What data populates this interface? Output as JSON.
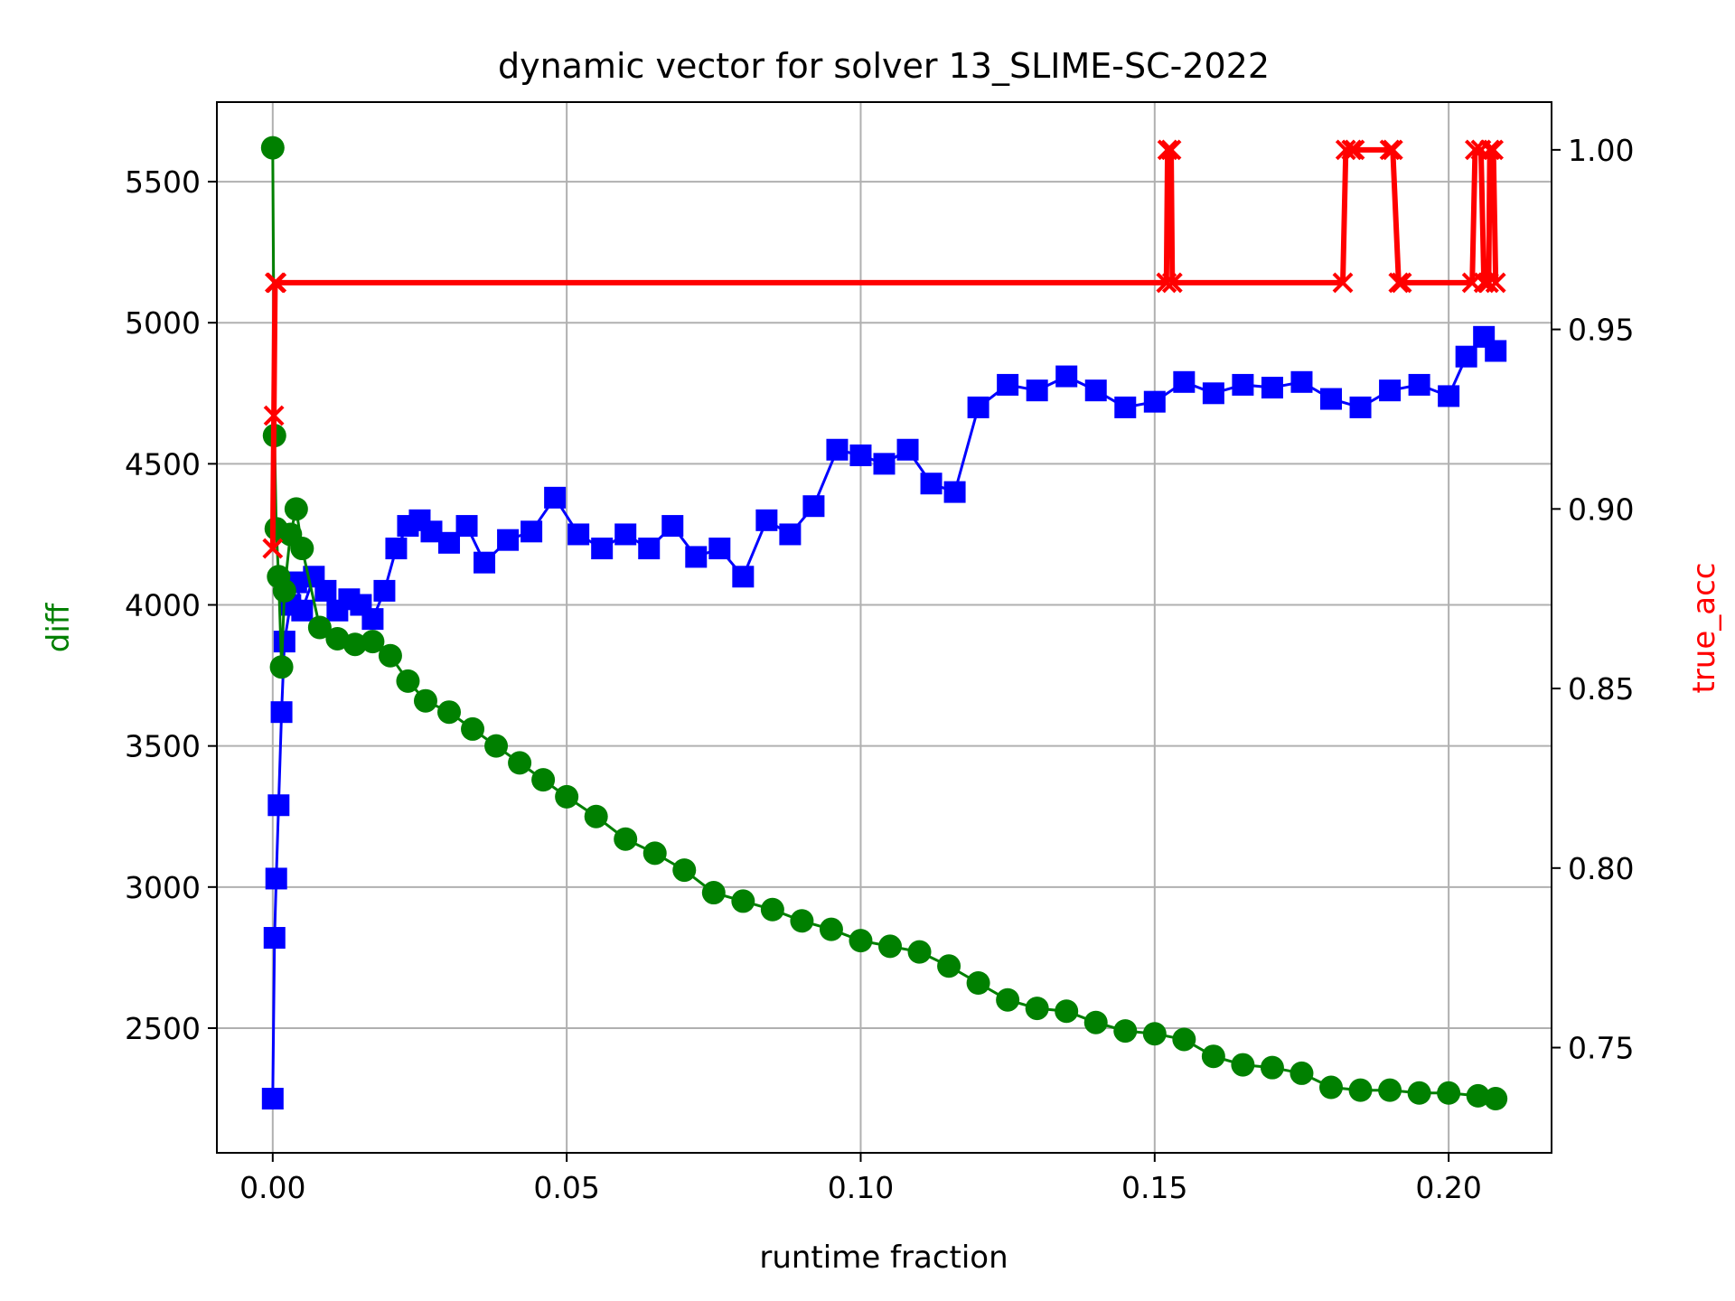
{
  "chart_data": {
    "type": "line",
    "title": "dynamic vector for solver 13_SLIME-SC-2022",
    "xlabel": "runtime fraction",
    "ylabel_left": "diff",
    "ylabel_right": "true_acc",
    "xlim": [
      -0.0095,
      0.2175
    ],
    "ylim_left": [
      2058,
      5782
    ],
    "ylim_right": [
      0.7207,
      1.0133
    ],
    "x_ticks": [
      0.0,
      0.05,
      0.1,
      0.15,
      0.2
    ],
    "x_tick_labels": [
      "0.00",
      "0.05",
      "0.10",
      "0.15",
      "0.20"
    ],
    "y_left_ticks": [
      2500,
      3000,
      3500,
      4000,
      4500,
      5000,
      5500
    ],
    "y_left_tick_labels": [
      "2500",
      "3000",
      "3500",
      "4000",
      "4500",
      "5000",
      "5500"
    ],
    "y_right_ticks": [
      0.75,
      0.8,
      0.85,
      0.9,
      0.95,
      1.0
    ],
    "y_right_tick_labels": [
      "0.75",
      "0.80",
      "0.85",
      "0.90",
      "0.95",
      "1.00"
    ],
    "grid": true,
    "colors": {
      "diff": "#008000",
      "blue_series": "#0000ff",
      "true_acc": "#ff0000",
      "axes": "#000000",
      "grid": "#b0b0b0"
    },
    "series": [
      {
        "axis": "left",
        "color": "#008000",
        "marker": "circle",
        "x": [
          0.0,
          0.0003,
          0.0006,
          0.001,
          0.0015,
          0.002,
          0.003,
          0.004,
          0.005,
          0.008,
          0.011,
          0.014,
          0.017,
          0.02,
          0.023,
          0.026,
          0.03,
          0.034,
          0.038,
          0.042,
          0.046,
          0.05,
          0.055,
          0.06,
          0.065,
          0.07,
          0.075,
          0.08,
          0.085,
          0.09,
          0.095,
          0.1,
          0.105,
          0.11,
          0.115,
          0.12,
          0.125,
          0.13,
          0.135,
          0.14,
          0.145,
          0.15,
          0.155,
          0.16,
          0.165,
          0.17,
          0.175,
          0.18,
          0.185,
          0.19,
          0.195,
          0.2,
          0.205,
          0.208
        ],
        "values": [
          5620,
          4600,
          4270,
          4100,
          3780,
          4050,
          4250,
          4340,
          4200,
          3920,
          3880,
          3860,
          3870,
          3820,
          3730,
          3660,
          3620,
          3560,
          3500,
          3440,
          3380,
          3320,
          3250,
          3170,
          3120,
          3060,
          2980,
          2950,
          2920,
          2880,
          2850,
          2810,
          2790,
          2770,
          2720,
          2660,
          2600,
          2570,
          2560,
          2520,
          2490,
          2480,
          2460,
          2400,
          2370,
          2360,
          2340,
          2290,
          2280,
          2280,
          2270,
          2270,
          2260,
          2250
        ]
      },
      {
        "axis": "left",
        "color": "#0000ff",
        "marker": "square",
        "x": [
          0.0,
          0.0003,
          0.0006,
          0.001,
          0.0015,
          0.002,
          0.003,
          0.004,
          0.005,
          0.007,
          0.009,
          0.011,
          0.013,
          0.015,
          0.017,
          0.019,
          0.021,
          0.023,
          0.025,
          0.027,
          0.03,
          0.033,
          0.036,
          0.04,
          0.044,
          0.048,
          0.052,
          0.056,
          0.06,
          0.064,
          0.068,
          0.072,
          0.076,
          0.08,
          0.084,
          0.088,
          0.092,
          0.096,
          0.1,
          0.104,
          0.108,
          0.112,
          0.116,
          0.12,
          0.125,
          0.13,
          0.135,
          0.14,
          0.145,
          0.15,
          0.155,
          0.16,
          0.165,
          0.17,
          0.175,
          0.18,
          0.185,
          0.19,
          0.195,
          0.2,
          0.203,
          0.206,
          0.208
        ],
        "values": [
          2250,
          2820,
          3030,
          3290,
          3620,
          3870,
          4000,
          4080,
          3980,
          4100,
          4050,
          3980,
          4020,
          4000,
          3950,
          4050,
          4200,
          4280,
          4300,
          4260,
          4220,
          4280,
          4150,
          4230,
          4260,
          4380,
          4250,
          4200,
          4250,
          4200,
          4280,
          4170,
          4200,
          4100,
          4300,
          4250,
          4350,
          4550,
          4530,
          4500,
          4550,
          4430,
          4400,
          4700,
          4780,
          4760,
          4810,
          4760,
          4700,
          4720,
          4790,
          4750,
          4780,
          4770,
          4790,
          4730,
          4700,
          4760,
          4780,
          4740,
          4880,
          4950,
          4900
        ]
      },
      {
        "axis": "right",
        "name": "true_acc",
        "color": "#ff0000",
        "marker": "x",
        "x": [
          0.0,
          0.0002,
          0.0004,
          0.0006,
          0.152,
          0.1522,
          0.1528,
          0.153,
          0.182,
          0.1825,
          0.1835,
          0.184,
          0.19,
          0.1905,
          0.1915,
          0.192,
          0.204,
          0.2045,
          0.2055,
          0.206,
          0.2068,
          0.207,
          0.2076,
          0.208
        ],
        "values": [
          0.889,
          0.926,
          0.963,
          0.963,
          0.963,
          1.0,
          1.0,
          0.963,
          0.963,
          1.0,
          1.0,
          1.0,
          1.0,
          1.0,
          0.963,
          0.963,
          0.963,
          1.0,
          1.0,
          0.963,
          0.963,
          1.0,
          1.0,
          0.963
        ]
      }
    ]
  }
}
